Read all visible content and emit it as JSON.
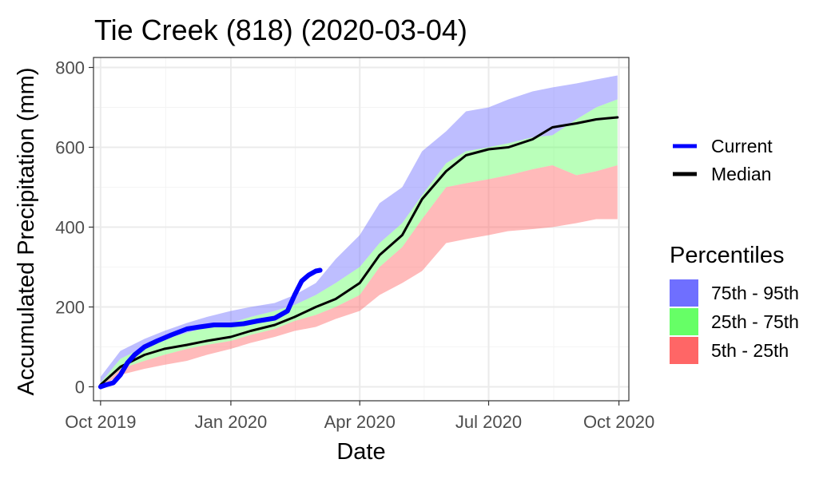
{
  "chart_data": {
    "type": "area",
    "title": "Tie Creek (818) (2020-03-04)",
    "xlabel": "Date",
    "ylabel": "Accumulated Precipitation (mm)",
    "x_ticks": [
      "Oct 2019",
      "Jan 2020",
      "Apr 2020",
      "Jul 2020",
      "Oct 2020"
    ],
    "y_ticks": [
      "0",
      "200",
      "400",
      "600",
      "800"
    ],
    "xlim": [
      "2019-09-26",
      "2020-10-08"
    ],
    "ylim": [
      -35,
      825
    ],
    "grid": true,
    "legend_placement": "right",
    "lines_legend": [
      {
        "label": "Current",
        "color": "#0000ff"
      },
      {
        "label": "Median",
        "color": "#000000"
      }
    ],
    "percentiles_title": "Percentiles",
    "bands": [
      {
        "label": "75th - 95th",
        "color": "#6f6fff"
      },
      {
        "label": "25th - 75th",
        "color": "#66ff66"
      },
      {
        "label": "5th - 25th",
        "color": "#ff6666"
      }
    ],
    "percentile_data": {
      "x": [
        "2019-10-01",
        "2019-10-15",
        "2019-11-01",
        "2019-11-15",
        "2019-12-01",
        "2019-12-15",
        "2020-01-01",
        "2020-01-15",
        "2020-02-01",
        "2020-02-15",
        "2020-03-01",
        "2020-03-15",
        "2020-04-01",
        "2020-04-15",
        "2020-05-01",
        "2020-05-15",
        "2020-06-01",
        "2020-06-15",
        "2020-07-01",
        "2020-07-15",
        "2020-08-01",
        "2020-08-15",
        "2020-09-01",
        "2020-09-15",
        "2020-09-30"
      ],
      "p5": [
        0,
        30,
        45,
        55,
        65,
        80,
        95,
        110,
        125,
        140,
        150,
        170,
        190,
        230,
        260,
        290,
        360,
        370,
        380,
        390,
        395,
        400,
        410,
        420,
        420
      ],
      "p25": [
        0,
        45,
        65,
        80,
        95,
        105,
        115,
        130,
        145,
        165,
        180,
        200,
        230,
        300,
        350,
        420,
        500,
        510,
        520,
        530,
        545,
        555,
        530,
        540,
        555
      ],
      "p75": [
        10,
        70,
        100,
        120,
        135,
        150,
        160,
        175,
        190,
        205,
        230,
        260,
        300,
        360,
        410,
        480,
        560,
        590,
        600,
        610,
        625,
        630,
        670,
        700,
        720
      ],
      "p95": [
        25,
        90,
        120,
        140,
        160,
        175,
        190,
        200,
        210,
        230,
        260,
        320,
        380,
        460,
        500,
        590,
        640,
        690,
        700,
        720,
        740,
        750,
        760,
        770,
        780
      ]
    },
    "series": [
      {
        "name": "Current",
        "x": [
          "2019-10-01",
          "2019-10-05",
          "2019-10-10",
          "2019-10-15",
          "2019-10-20",
          "2019-10-25",
          "2019-11-01",
          "2019-11-10",
          "2019-11-20",
          "2019-12-01",
          "2019-12-10",
          "2019-12-20",
          "2020-01-01",
          "2020-01-10",
          "2020-01-20",
          "2020-02-01",
          "2020-02-10",
          "2020-02-15",
          "2020-02-20",
          "2020-02-25",
          "2020-03-01",
          "2020-03-04"
        ],
        "values": [
          0,
          5,
          10,
          30,
          60,
          80,
          100,
          115,
          130,
          145,
          150,
          155,
          155,
          158,
          165,
          172,
          190,
          230,
          265,
          280,
          290,
          292
        ]
      },
      {
        "name": "Median",
        "x": [
          "2019-10-01",
          "2019-10-15",
          "2019-11-01",
          "2019-11-15",
          "2019-12-01",
          "2019-12-15",
          "2020-01-01",
          "2020-01-15",
          "2020-02-01",
          "2020-02-15",
          "2020-03-01",
          "2020-03-15",
          "2020-04-01",
          "2020-04-15",
          "2020-05-01",
          "2020-05-15",
          "2020-06-01",
          "2020-06-15",
          "2020-07-01",
          "2020-07-15",
          "2020-08-01",
          "2020-08-15",
          "2020-09-01",
          "2020-09-15",
          "2020-09-30"
        ],
        "values": [
          5,
          50,
          80,
          95,
          105,
          115,
          125,
          140,
          155,
          175,
          200,
          220,
          260,
          330,
          380,
          470,
          540,
          580,
          595,
          600,
          620,
          650,
          660,
          670,
          675
        ]
      }
    ]
  },
  "colors": {
    "current": "#0000ff",
    "median": "#000000",
    "band_upper": "#6f6fff",
    "band_mid": "#66ff66",
    "band_lower": "#ff6666",
    "grid_major": "#ebebeb",
    "grid_minor": "#f4f4f4",
    "panel_border": "#333333"
  }
}
